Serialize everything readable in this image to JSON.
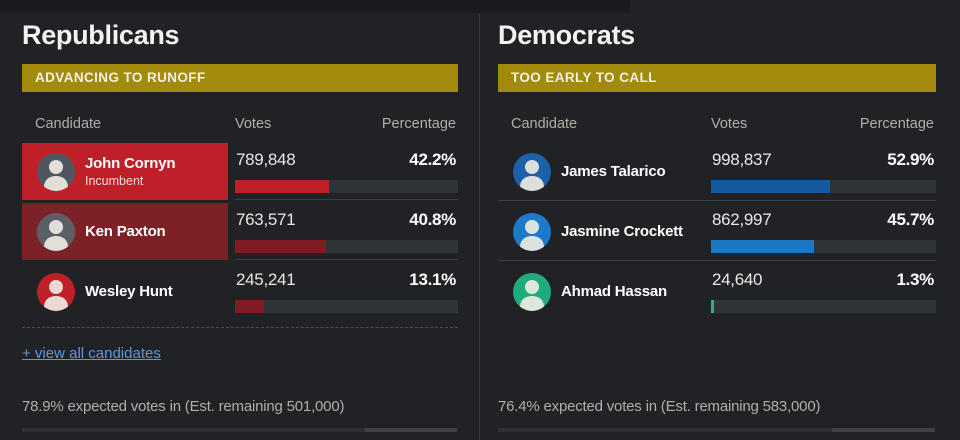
{
  "colors": {
    "background": "#212226",
    "status_banner_gold": "#a28a0b",
    "republican_bright_red": "#bf2027",
    "republican_dark_red": "#801c21",
    "democrat_blue_dark": "#155a9d",
    "democrat_blue_bright": "#1a78c6",
    "democrat_teal": "#28b28d",
    "link_blue": "#5e98dc",
    "bar_track": "#2f3438"
  },
  "panels": [
    {
      "party": "Republicans",
      "status": "ADVANCING TO RUNOFF",
      "status_bg": "#a28a0b",
      "columns": {
        "candidate": "Candidate",
        "votes": "Votes",
        "percentage": "Percentage"
      },
      "candidates": [
        {
          "name": "John Cornyn",
          "subtitle": "Incumbent",
          "votes": "789,848",
          "pct_label": "42.2%",
          "pct": 42.2,
          "bar_color": "#bf2027",
          "row_highlight": "#bf2027",
          "avatar_color": "#4e565f"
        },
        {
          "name": "Ken Paxton",
          "votes": "763,571",
          "pct_label": "40.8%",
          "pct": 40.8,
          "bar_color": "#801c21",
          "row_highlight": "#7c2125",
          "avatar_color": "#5a6066"
        },
        {
          "name": "Wesley Hunt",
          "votes": "245,241",
          "pct_label": "13.1%",
          "pct": 13.1,
          "bar_color": "#801c21",
          "avatar_color": "#bf2027"
        }
      ],
      "view_all": "+ view all candidates",
      "footer": "78.9% expected votes in (Est. remaining 501,000)",
      "reporting_pct": 78.9
    },
    {
      "party": "Democrats",
      "status": "TOO EARLY TO CALL",
      "status_bg": "#a28a0b",
      "columns": {
        "candidate": "Candidate",
        "votes": "Votes",
        "percentage": "Percentage"
      },
      "candidates": [
        {
          "name": "James Talarico",
          "votes": "998,837",
          "pct_label": "52.9%",
          "pct": 52.9,
          "bar_color": "#155a9d",
          "avatar_color": "#1c60a9"
        },
        {
          "name": "Jasmine Crockett",
          "votes": "862,997",
          "pct_label": "45.7%",
          "pct": 45.7,
          "bar_color": "#1a78c6",
          "avatar_color": "#1b7bca"
        },
        {
          "name": "Ahmad Hassan",
          "votes": "24,640",
          "pct_label": "1.3%",
          "pct": 1.3,
          "bar_color": "#28b28d",
          "avatar_color": "#1fac7d"
        }
      ],
      "footer": "76.4% expected votes in (Est. remaining 583,000)",
      "reporting_pct": 76.4
    }
  ],
  "chart_data": [
    {
      "type": "bar",
      "title": "Republicans — ADVANCING TO RUNOFF",
      "categories": [
        "John Cornyn (Incumbent)",
        "Ken Paxton",
        "Wesley Hunt"
      ],
      "series": [
        {
          "name": "Votes",
          "values": [
            789848,
            763571,
            245241
          ]
        },
        {
          "name": "Percentage",
          "values": [
            42.2,
            40.8,
            13.1
          ]
        }
      ],
      "xlabel": "Candidate",
      "ylabel": "Percentage",
      "ylim": [
        0,
        100
      ],
      "annotations": [
        "78.9% expected votes in (Est. remaining 501,000)"
      ]
    },
    {
      "type": "bar",
      "title": "Democrats — TOO EARLY TO CALL",
      "categories": [
        "James Talarico",
        "Jasmine Crockett",
        "Ahmad Hassan"
      ],
      "series": [
        {
          "name": "Votes",
          "values": [
            998837,
            862997,
            24640
          ]
        },
        {
          "name": "Percentage",
          "values": [
            52.9,
            45.7,
            1.3
          ]
        }
      ],
      "xlabel": "Candidate",
      "ylabel": "Percentage",
      "ylim": [
        0,
        100
      ],
      "annotations": [
        "76.4% expected votes in (Est. remaining 583,000)"
      ]
    }
  ]
}
